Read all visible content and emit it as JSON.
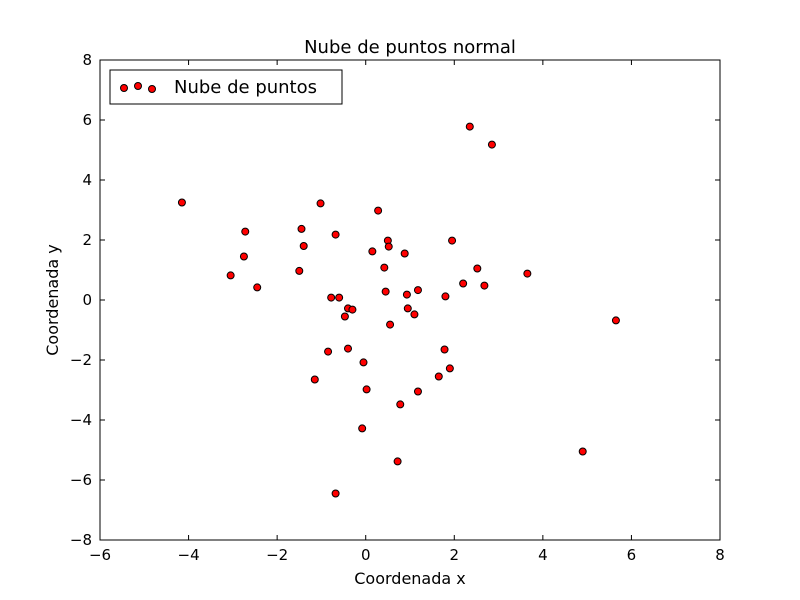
{
  "chart_data": {
    "type": "scatter",
    "title": "Nube de puntos normal",
    "xlabel": "Coordenada x",
    "ylabel": "Coordenada y",
    "xlim": [
      -6,
      8
    ],
    "ylim": [
      -8,
      8
    ],
    "xticks": [
      -6,
      -4,
      -2,
      0,
      2,
      4,
      6,
      8
    ],
    "yticks": [
      -8,
      -6,
      -4,
      -2,
      0,
      2,
      4,
      6,
      8
    ],
    "xtick_labels": [
      "−6",
      "−4",
      "−2",
      "0",
      "2",
      "4",
      "6",
      "8"
    ],
    "ytick_labels": [
      "−8",
      "−6",
      "−4",
      "−2",
      "0",
      "2",
      "4",
      "6",
      "8"
    ],
    "grid": false,
    "legend_position": "top-left",
    "series": [
      {
        "name": "Nube de puntos",
        "color": "#ff0000",
        "edge_color": "#000000",
        "points": [
          {
            "x": -4.15,
            "y": 3.25
          },
          {
            "x": -3.05,
            "y": 0.82
          },
          {
            "x": -2.72,
            "y": 2.28
          },
          {
            "x": -2.75,
            "y": 1.45
          },
          {
            "x": -2.45,
            "y": 0.42
          },
          {
            "x": -1.45,
            "y": 2.37
          },
          {
            "x": -1.4,
            "y": 1.8
          },
          {
            "x": -1.5,
            "y": 0.97
          },
          {
            "x": -1.02,
            "y": 3.22
          },
          {
            "x": -0.68,
            "y": 2.18
          },
          {
            "x": -0.78,
            "y": 0.08
          },
          {
            "x": -0.6,
            "y": 0.08
          },
          {
            "x": -0.4,
            "y": -0.28
          },
          {
            "x": -0.3,
            "y": -0.32
          },
          {
            "x": -0.47,
            "y": -0.55
          },
          {
            "x": 0.28,
            "y": 2.98
          },
          {
            "x": 0.15,
            "y": 1.62
          },
          {
            "x": 0.5,
            "y": 1.98
          },
          {
            "x": 0.52,
            "y": 1.78
          },
          {
            "x": 0.42,
            "y": 1.08
          },
          {
            "x": 0.88,
            "y": 1.55
          },
          {
            "x": 1.95,
            "y": 1.98
          },
          {
            "x": 2.52,
            "y": 1.05
          },
          {
            "x": 2.2,
            "y": 0.55
          },
          {
            "x": 2.68,
            "y": 0.48
          },
          {
            "x": 3.65,
            "y": 0.88
          },
          {
            "x": 0.45,
            "y": 0.28
          },
          {
            "x": 0.93,
            "y": 0.18
          },
          {
            "x": 1.18,
            "y": 0.33
          },
          {
            "x": 1.8,
            "y": 0.12
          },
          {
            "x": 0.95,
            "y": -0.28
          },
          {
            "x": 1.1,
            "y": -0.48
          },
          {
            "x": 0.55,
            "y": -0.82
          },
          {
            "x": 2.35,
            "y": 5.78
          },
          {
            "x": 2.85,
            "y": 5.18
          },
          {
            "x": 5.65,
            "y": -0.68
          },
          {
            "x": -0.85,
            "y": -1.72
          },
          {
            "x": -0.4,
            "y": -1.62
          },
          {
            "x": -0.05,
            "y": -2.08
          },
          {
            "x": -1.15,
            "y": -2.65
          },
          {
            "x": 0.02,
            "y": -2.98
          },
          {
            "x": 0.78,
            "y": -3.48
          },
          {
            "x": 1.18,
            "y": -3.05
          },
          {
            "x": 1.78,
            "y": -1.65
          },
          {
            "x": 1.9,
            "y": -2.28
          },
          {
            "x": 1.65,
            "y": -2.55
          },
          {
            "x": -0.08,
            "y": -4.28
          },
          {
            "x": 0.72,
            "y": -5.38
          },
          {
            "x": -0.68,
            "y": -6.45
          },
          {
            "x": 4.9,
            "y": -5.05
          }
        ]
      }
    ]
  }
}
